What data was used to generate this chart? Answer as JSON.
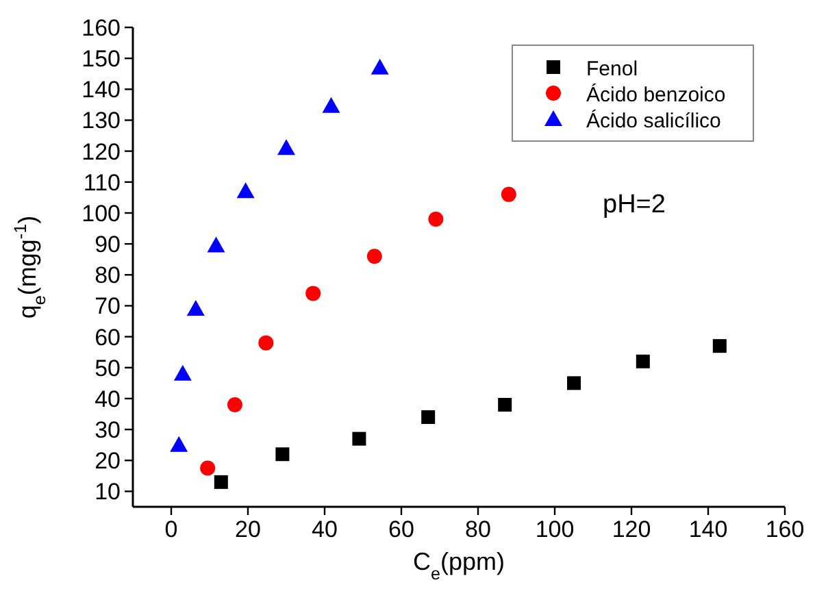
{
  "chart_data": {
    "type": "scatter",
    "xlabel": "C$_{e}$(ppm)",
    "ylabel": "q$_{e}$(mgg$^{-1}$)",
    "annotations": [
      "pH=2"
    ],
    "xlim": [
      -10,
      160
    ],
    "xticks": [
      0,
      20,
      40,
      60,
      80,
      100,
      120,
      140,
      160
    ],
    "ylim": [
      5,
      160
    ],
    "yticks": [
      10,
      20,
      30,
      40,
      50,
      60,
      70,
      80,
      90,
      100,
      110,
      120,
      130,
      140,
      150,
      160
    ],
    "legend": "top right",
    "grid": false,
    "series": [
      {
        "name": "Fenol",
        "color": "#000000",
        "marker": "square",
        "x": [
          13,
          29,
          49,
          67,
          87,
          105,
          123,
          143
        ],
        "values": [
          13,
          22,
          27,
          34,
          38,
          45,
          52,
          57
        ]
      },
      {
        "name": "Ácido benzoico",
        "color": "#ff0000",
        "marker": "circle",
        "x": [
          9.5,
          16.6,
          24.7,
          37,
          53,
          69,
          88
        ],
        "values": [
          17.5,
          38,
          58,
          74,
          86,
          98,
          106
        ]
      },
      {
        "name": "Ácido salicílico",
        "color": "#0000ff",
        "marker": "triangle",
        "x": [
          2,
          3,
          6.4,
          11.7,
          19.4,
          30,
          41.7,
          54.4
        ],
        "values": [
          25,
          48,
          69,
          89.5,
          107,
          121,
          134.6,
          147
        ]
      }
    ]
  }
}
